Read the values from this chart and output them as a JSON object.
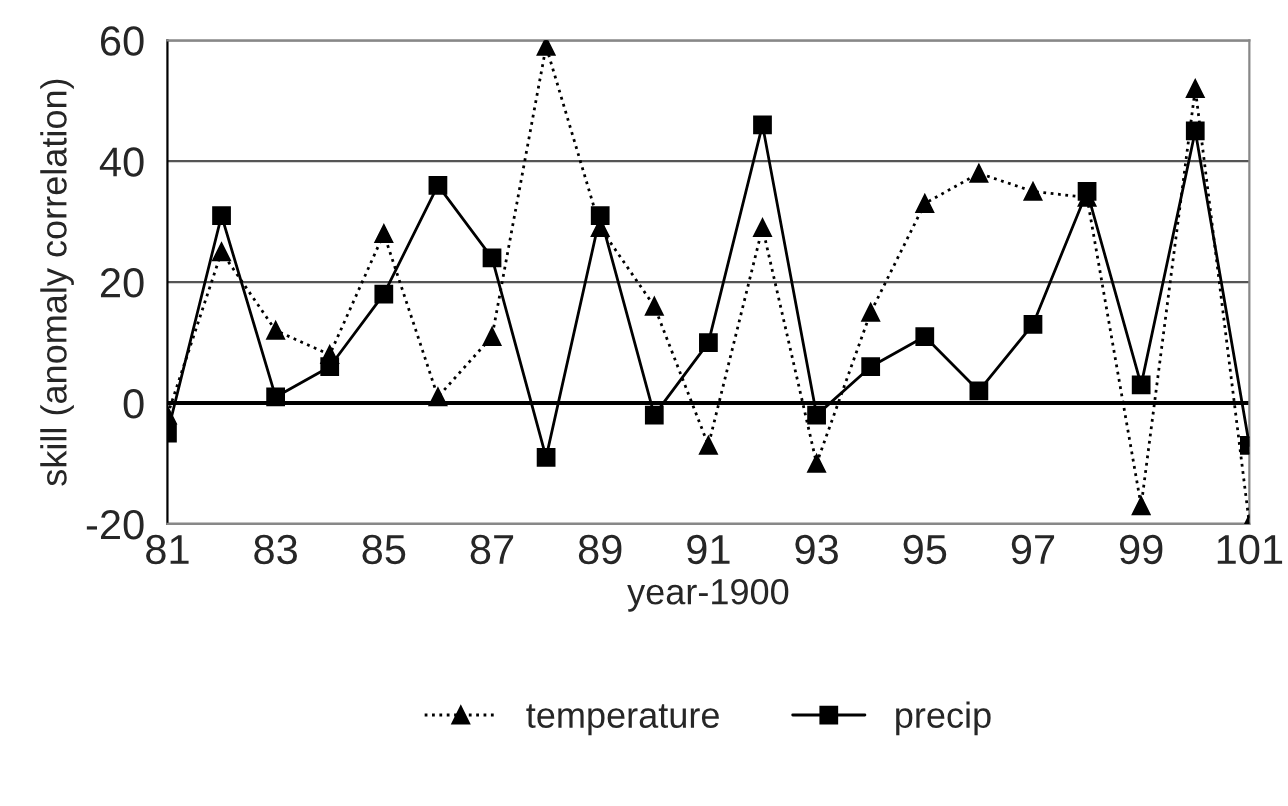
{
  "chart_data": {
    "type": "line",
    "xlabel": "year-1900",
    "ylabel": "skill (anomaly correlation)",
    "x": [
      81,
      82,
      83,
      84,
      85,
      86,
      87,
      88,
      89,
      90,
      91,
      92,
      93,
      94,
      95,
      96,
      97,
      98,
      99,
      100,
      101
    ],
    "series": [
      {
        "name": "temperature",
        "color": "#000000",
        "marker": "triangle",
        "line_style": "dotted",
        "values": [
          -2,
          25,
          12,
          8,
          28,
          1,
          11,
          59,
          29,
          16,
          -7,
          29,
          -10,
          15,
          33,
          38,
          35,
          34,
          -17,
          52,
          -20
        ]
      },
      {
        "name": "precip",
        "color": "#000000",
        "marker": "square",
        "line_style": "solid",
        "values": [
          -5,
          31,
          1,
          6,
          18,
          36,
          24,
          -9,
          31,
          -2,
          10,
          46,
          -2,
          6,
          11,
          2,
          13,
          35,
          3,
          45,
          -7
        ]
      }
    ],
    "xlim": [
      81,
      101
    ],
    "xticks": [
      81,
      83,
      85,
      87,
      89,
      91,
      93,
      95,
      97,
      99,
      101
    ],
    "ylim": [
      -20,
      60
    ],
    "yticks": [
      -20,
      0,
      20,
      40,
      60
    ],
    "grid": "y",
    "ref_lines": [
      {
        "axis": "y",
        "value": 0,
        "color": "#000000"
      }
    ],
    "legend": "bottom"
  }
}
